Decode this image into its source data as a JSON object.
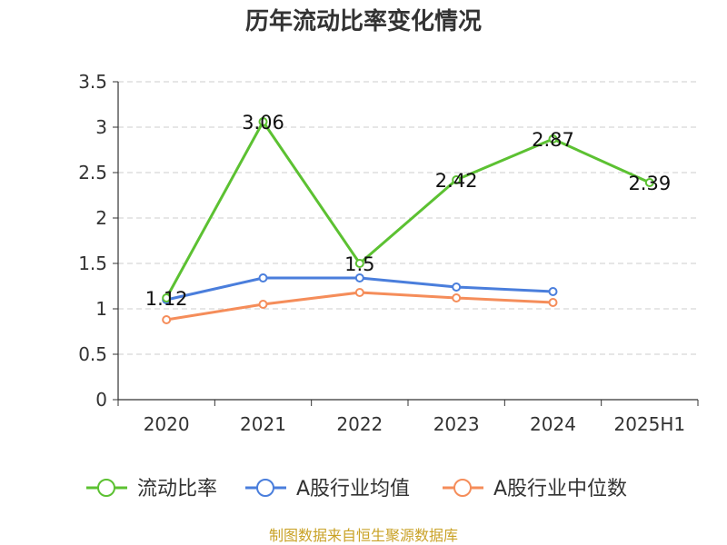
{
  "chart_data": {
    "type": "line",
    "title": "历年流动比率变化情况",
    "categories": [
      "2020",
      "2021",
      "2022",
      "2023",
      "2024",
      "2025H1"
    ],
    "ylim": [
      0,
      3.5
    ],
    "yticks": [
      "0",
      "0.5",
      "1",
      "1.5",
      "2",
      "2.5",
      "3",
      "3.5"
    ],
    "grid": true,
    "legend_position": "bottom",
    "series": [
      {
        "name": "流动比率",
        "color": "#5cc132",
        "values": [
          1.12,
          3.06,
          1.5,
          2.42,
          2.87,
          2.39
        ],
        "labels": [
          "1.12",
          "3.06",
          "1.5",
          "2.42",
          "2.87",
          "2.39"
        ]
      },
      {
        "name": "A股行业均值",
        "color": "#4a7edc",
        "values": [
          1.1,
          1.34,
          1.34,
          1.24,
          1.19,
          null
        ]
      },
      {
        "name": "A股行业中位数",
        "color": "#f58d5a",
        "values": [
          0.88,
          1.05,
          1.18,
          1.12,
          1.07,
          null
        ]
      }
    ],
    "source": "制图数据来自恒生聚源数据库"
  }
}
